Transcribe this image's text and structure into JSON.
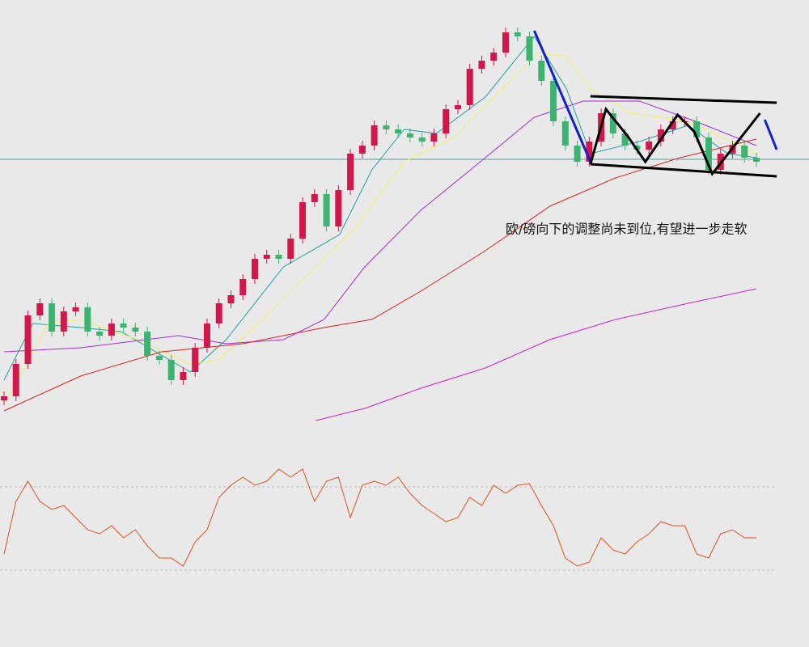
{
  "chart_data": [
    {
      "type": "candlestick",
      "ylim": [
        0,
        540
      ],
      "xlim": [
        0,
        63
      ],
      "up_color": "#d4174a",
      "down_color": "#3cb371",
      "candles": [
        [
          45,
          56,
          39,
          50
        ],
        [
          50,
          96,
          44,
          90
        ],
        [
          90,
          156,
          84,
          150
        ],
        [
          150,
          171,
          144,
          165
        ],
        [
          165,
          171,
          124,
          130
        ],
        [
          130,
          161,
          124,
          155
        ],
        [
          155,
          166,
          149,
          160
        ],
        [
          160,
          166,
          124,
          130
        ],
        [
          130,
          136,
          119,
          125
        ],
        [
          125,
          146,
          119,
          140
        ],
        [
          140,
          146,
          129,
          135
        ],
        [
          135,
          141,
          124,
          130
        ],
        [
          130,
          136,
          94,
          100
        ],
        [
          100,
          106,
          89,
          95
        ],
        [
          95,
          101,
          64,
          70
        ],
        [
          70,
          86,
          64,
          80
        ],
        [
          80,
          116,
          74,
          110
        ],
        [
          110,
          146,
          104,
          140
        ],
        [
          140,
          171,
          134,
          165
        ],
        [
          165,
          181,
          159,
          175
        ],
        [
          175,
          201,
          169,
          195
        ],
        [
          195,
          226,
          189,
          220
        ],
        [
          220,
          231,
          214,
          225
        ],
        [
          225,
          231,
          214,
          220
        ],
        [
          220,
          251,
          214,
          245
        ],
        [
          245,
          296,
          239,
          290
        ],
        [
          290,
          306,
          284,
          300
        ],
        [
          300,
          306,
          254,
          260
        ],
        [
          260,
          311,
          254,
          305
        ],
        [
          305,
          356,
          299,
          350
        ],
        [
          350,
          366,
          344,
          360
        ],
        [
          360,
          391,
          354,
          385
        ],
        [
          385,
          391,
          374,
          380
        ],
        [
          380,
          386,
          369,
          375
        ],
        [
          375,
          381,
          364,
          370
        ],
        [
          370,
          376,
          359,
          365
        ],
        [
          365,
          381,
          359,
          375
        ],
        [
          375,
          411,
          369,
          405
        ],
        [
          405,
          416,
          399,
          410
        ],
        [
          410,
          461,
          404,
          455
        ],
        [
          455,
          471,
          449,
          465
        ],
        [
          465,
          481,
          459,
          475
        ],
        [
          475,
          506,
          469,
          500
        ],
        [
          500,
          506,
          489,
          495
        ],
        [
          495,
          501,
          459,
          465
        ],
        [
          465,
          471,
          434,
          440
        ],
        [
          440,
          446,
          384,
          390
        ],
        [
          390,
          396,
          354,
          360
        ],
        [
          360,
          366,
          334,
          340
        ],
        [
          340,
          371,
          334,
          365
        ],
        [
          365,
          406,
          359,
          400
        ],
        [
          400,
          406,
          369,
          375
        ],
        [
          375,
          381,
          354,
          360
        ],
        [
          360,
          366,
          349,
          355
        ],
        [
          355,
          371,
          349,
          365
        ],
        [
          365,
          386,
          359,
          380
        ],
        [
          380,
          396,
          374,
          390
        ],
        [
          390,
          396,
          384,
          390
        ],
        [
          390,
          396,
          364,
          370
        ],
        [
          370,
          376,
          324,
          330
        ],
        [
          330,
          356,
          324,
          350
        ],
        [
          350,
          366,
          344,
          360
        ],
        [
          360,
          366,
          339,
          345
        ],
        [
          345,
          351,
          334,
          340
        ]
      ],
      "lines": [
        {
          "color": "#20a0a0",
          "x": [
            0,
            2.4,
            6.4,
            9.8,
            15.6,
            18.6,
            23.4,
            28.1,
            30.8,
            33.5,
            36.2,
            40.3,
            44.4,
            47.1,
            49.1,
            53.2,
            57.3,
            60.6,
            63
          ],
          "values": [
            70,
            140,
            135,
            130,
            80,
            120,
            210,
            250,
            330,
            380,
            375,
            420,
            495,
            430,
            350,
            365,
            385,
            350,
            345
          ]
        },
        {
          "color": "#f0f060",
          "x": [
            0,
            3.7,
            6.4,
            11.2,
            15.6,
            17.9,
            21.3,
            26.1,
            29.5,
            33.5,
            37.6,
            41.7,
            44.7,
            47.1,
            49.1,
            52.5,
            57.3,
            63
          ],
          "values": [
            40,
            140,
            145,
            120,
            90,
            95,
            140,
            210,
            260,
            340,
            370,
            430,
            475,
            470,
            430,
            400,
            390,
            350
          ]
        },
        {
          "color": "#a030d0",
          "x": [
            0,
            6.4,
            14.6,
            18.6,
            23.4,
            26.8,
            30.2,
            34.9,
            40.3,
            44.4,
            48.5,
            53.2,
            57.9,
            63
          ],
          "values": [
            105,
            110,
            125,
            115,
            120,
            145,
            210,
            280,
            345,
            395,
            415,
            415,
            390,
            360
          ]
        },
        {
          "color": "#e02020",
          "x": [
            0,
            6.4,
            13.2,
            20,
            26.8,
            30.8,
            34.9,
            40.3,
            45.7,
            51.2,
            56.6,
            63
          ],
          "values": [
            32,
            75,
            105,
            115,
            135,
            145,
            180,
            230,
            285,
            320,
            345,
            368
          ]
        },
        {
          "color": "#d020c0",
          "x": [
            26.1,
            30.2,
            34.9,
            40.3,
            45.7,
            51.2,
            57.3,
            63
          ],
          "values": [
            20,
            35,
            60,
            85,
            120,
            145,
            165,
            183
          ]
        }
      ],
      "hline": {
        "value": 343,
        "color": "#5aa0a0"
      },
      "drawings": [
        {
          "color": "#1020d0",
          "x": [
            44.4,
            49.1
          ],
          "values": [
            502,
            340
          ]
        },
        {
          "color": "#1020d0",
          "x": [
            63.7,
            64.7
          ],
          "values": [
            392,
            355
          ]
        },
        {
          "color": "#000000",
          "x": [
            49.1,
            64.7
          ],
          "values": [
            421,
            413
          ]
        },
        {
          "color": "#000000",
          "x": [
            49.1,
            64.7
          ],
          "values": [
            337,
            322
          ]
        },
        {
          "color": "#000000",
          "x": [
            49.1,
            50.4,
            52.2,
            53.7,
            56.4,
            57.8,
            59.3,
            63.3
          ],
          "values": [
            337,
            405,
            372,
            340,
            398,
            377,
            325,
            400
          ]
        }
      ],
      "annotation": "欧/磅向下的调整尚未到位,有望进一步走软"
    },
    {
      "type": "line",
      "ylim": [
        0,
        145
      ],
      "xlim": [
        0,
        63
      ],
      "color": "#e0501a",
      "reference_lines": [
        118,
        15
      ],
      "values": [
        35,
        100,
        125,
        100,
        90,
        95,
        80,
        65,
        60,
        70,
        55,
        65,
        45,
        30,
        30,
        20,
        50,
        65,
        105,
        120,
        130,
        120,
        125,
        140,
        130,
        140,
        100,
        125,
        130,
        80,
        120,
        125,
        120,
        130,
        110,
        95,
        85,
        75,
        80,
        105,
        95,
        120,
        110,
        120,
        122,
        95,
        70,
        30,
        20,
        25,
        55,
        40,
        35,
        50,
        60,
        75,
        70,
        70,
        35,
        30,
        60,
        65,
        55,
        55
      ]
    }
  ]
}
